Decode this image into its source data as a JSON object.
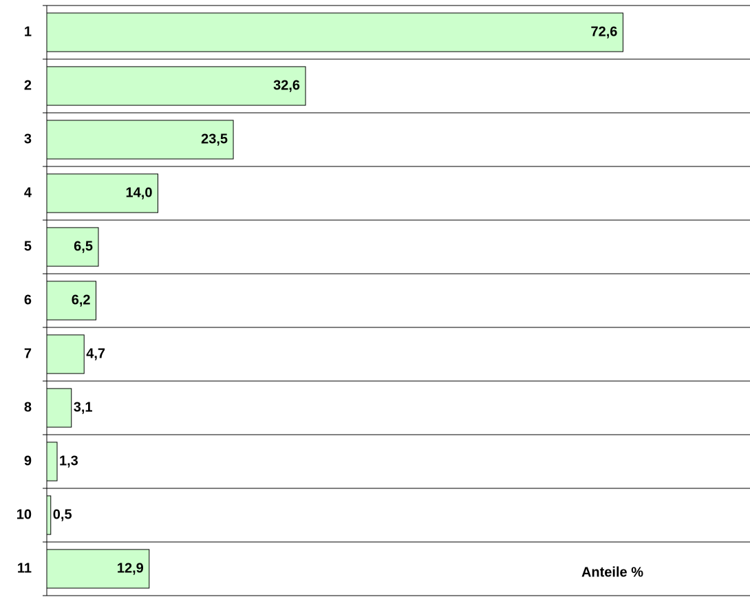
{
  "chart_data": {
    "type": "hbar",
    "x_label": "Anteile %",
    "categories": [
      "1",
      "2",
      "3",
      "4",
      "5",
      "6",
      "7",
      "8",
      "9",
      "10",
      "11"
    ],
    "values": [
      72.6,
      32.6,
      23.5,
      14.0,
      6.5,
      6.2,
      4.7,
      3.1,
      1.3,
      0.5,
      12.9
    ],
    "value_labels": [
      "72,6",
      "32,6",
      "23,5",
      "14,0",
      "6,5",
      "6,2",
      "4,7",
      "3,1",
      "1,3",
      "0,5",
      "12,9"
    ],
    "color": "#ccffcc",
    "xlim": [
      0,
      88.6
    ]
  }
}
